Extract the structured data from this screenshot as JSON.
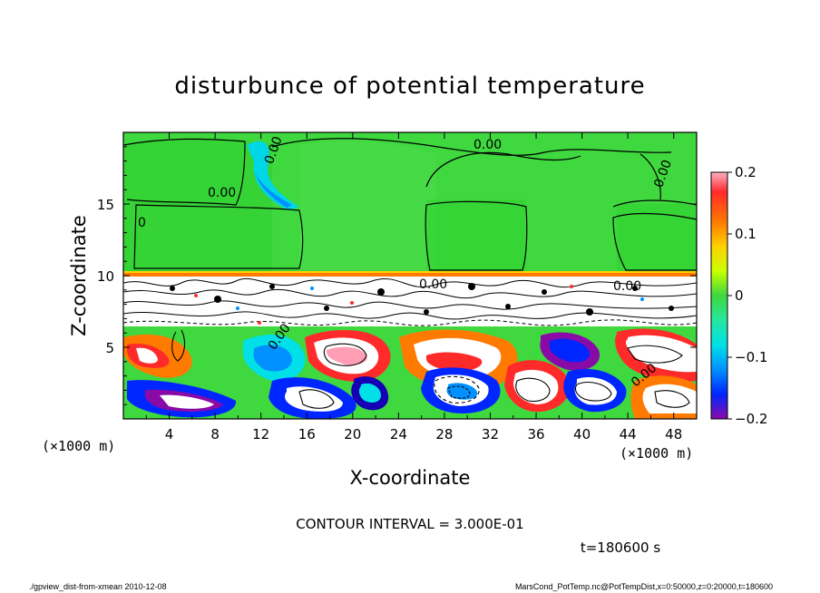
{
  "chart_data": {
    "type": "heatmap",
    "title": "disturbunce of potential temperature",
    "xlabel": "X-coordinate",
    "ylabel": "Z-coordinate",
    "x_unit": "(×1000 m)",
    "y_unit": "(×1000 m)",
    "x_ticks": [
      4,
      8,
      12,
      16,
      20,
      24,
      28,
      32,
      36,
      40,
      44,
      48
    ],
    "y_ticks": [
      5,
      10,
      15
    ],
    "xlim": [
      0,
      50
    ],
    "ylim": [
      0,
      20
    ],
    "colorbar": {
      "ticks": [
        0.2,
        0.1,
        0,
        -0.1,
        -0.2
      ],
      "tick_labels": [
        "0.2",
        "0.1",
        "0",
        "−0.1",
        "−0.2"
      ],
      "range": [
        -0.2,
        0.2
      ],
      "colors": [
        "#ff9eb4",
        "#ff2a2a",
        "#ff7a00",
        "#ffd000",
        "#c8ff00",
        "#3fd83f",
        "#27e7a0",
        "#00e0e6",
        "#0090ff",
        "#0026ff",
        "#1600b5",
        "#8a0aa8"
      ]
    },
    "contour_labels": [
      "0.00",
      "0.00",
      "0.00",
      "0.00",
      "0",
      "0.00",
      "0.00",
      "0.00",
      "0.00"
    ],
    "contour_interval": "CONTOUR INTERVAL = 3.000E-01",
    "time_label": "t=180600 s"
  },
  "footer": {
    "left": "./gpview_dist-from-xmean  2010-12-08",
    "right": "MarsCond_PotTemp.nc@PotTempDist,x=0:50000,z=0:20000,t=180600"
  }
}
